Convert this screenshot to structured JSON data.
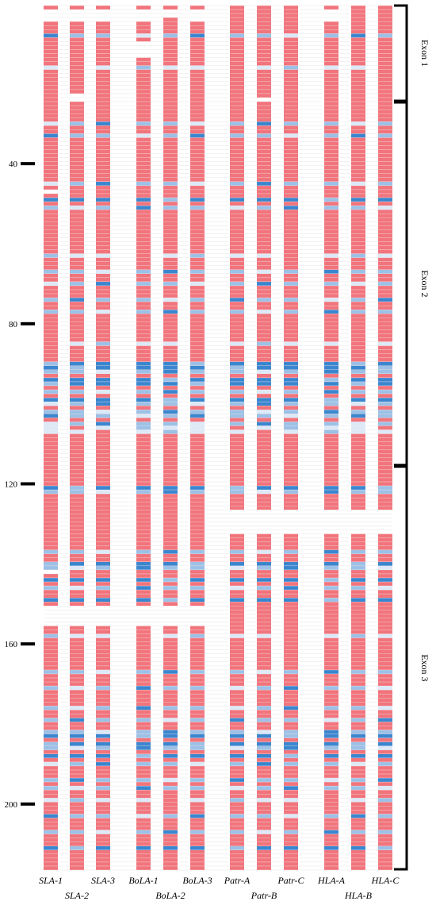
{
  "chart_data": {
    "type": "heatmap",
    "title": "",
    "ylabel": "",
    "row_range": [
      1,
      216
    ],
    "y_ticks": [
      40,
      80,
      120,
      160,
      200
    ],
    "colors": {
      "conserved": "#f2747c",
      "variable_light": "#dde9f7",
      "variable_mid": "#9dc0e6",
      "variable_strong": "#3c86cf",
      "gap": "#ffffff",
      "grid": "#e6e6e6",
      "bracket": "#000000"
    },
    "columns": [
      {
        "name": "SLA-1",
        "label_row": 1
      },
      {
        "name": "SLA-2",
        "label_row": 2
      },
      {
        "name": "SLA-3",
        "label_row": 1
      },
      {
        "name": "BoLA-1",
        "label_row": 1
      },
      {
        "name": "BoLA-2",
        "label_row": 2
      },
      {
        "name": "BoLA-3",
        "label_row": 1
      },
      {
        "name": "Patr-A",
        "label_row": 1
      },
      {
        "name": "Patr-B",
        "label_row": 2
      },
      {
        "name": "Patr-C",
        "label_row": 1
      },
      {
        "name": "HLA-A",
        "label_row": 1
      },
      {
        "name": "HLA-B",
        "label_row": 2
      },
      {
        "name": "HLA-C",
        "label_row": 1
      }
    ],
    "exons": [
      {
        "label": "Exon 1",
        "start": 1,
        "end": 24
      },
      {
        "label": "Exon 2",
        "start": 25,
        "end": 115
      },
      {
        "label": "Exon 3",
        "start": 116,
        "end": 216
      }
    ],
    "gap_rows": {
      "SLA-1": [
        2,
        3,
        4,
        47,
        142,
        151,
        152,
        153,
        154,
        155
      ],
      "SLA-2": [
        2,
        3,
        4,
        23,
        24,
        151,
        152,
        153,
        154,
        155
      ],
      "SLA-3": [
        2,
        3,
        4,
        151,
        152,
        153,
        154,
        155
      ],
      "BoLA-1": [
        2,
        3,
        4,
        10,
        11,
        12,
        13,
        151,
        152,
        153,
        154,
        155
      ],
      "BoLA-2": [
        2,
        3,
        151,
        152,
        153,
        154,
        155
      ],
      "BoLA-3": [
        2,
        3,
        4,
        151,
        152,
        153,
        154,
        155
      ],
      "Patr-A": [
        127,
        128,
        129,
        130,
        131,
        132
      ],
      "Patr-B": [
        24,
        127,
        128,
        129,
        130,
        131,
        132
      ],
      "Patr-C": [
        127,
        128,
        129,
        130,
        131,
        132
      ],
      "HLA-A": [
        2,
        3,
        4,
        127,
        128,
        129,
        130,
        131,
        132
      ],
      "HLA-B": [
        127,
        128,
        129,
        130,
        131,
        132
      ],
      "HLA-C": [
        127,
        128,
        129,
        130,
        131,
        132
      ]
    },
    "variable_rows": [
      {
        "row": 8,
        "level": 2
      },
      {
        "row": 16,
        "level": 1
      },
      {
        "row": 30,
        "level": 2
      },
      {
        "row": 33,
        "level": 2
      },
      {
        "row": 45,
        "level": 2
      },
      {
        "row": 49,
        "level": 3
      },
      {
        "row": 51,
        "level": 2
      },
      {
        "row": 63,
        "level": 1
      },
      {
        "row": 67,
        "level": 2
      },
      {
        "row": 70,
        "level": 2
      },
      {
        "row": 74,
        "level": 2
      },
      {
        "row": 77,
        "level": 2
      },
      {
        "row": 85,
        "level": 1
      },
      {
        "row": 90,
        "level": 3
      },
      {
        "row": 91,
        "level": 3
      },
      {
        "row": 92,
        "level": 2
      },
      {
        "row": 94,
        "level": 3
      },
      {
        "row": 95,
        "level": 3
      },
      {
        "row": 97,
        "level": 2
      },
      {
        "row": 99,
        "level": 3
      },
      {
        "row": 100,
        "level": 2
      },
      {
        "row": 102,
        "level": 2
      },
      {
        "row": 103,
        "level": 2
      },
      {
        "row": 105,
        "level": 2
      },
      {
        "row": 106,
        "level": 1
      },
      {
        "row": 107,
        "level": 1
      },
      {
        "row": 121,
        "level": 3
      },
      {
        "row": 122,
        "level": 2
      },
      {
        "row": 137,
        "level": 2
      },
      {
        "row": 140,
        "level": 3
      },
      {
        "row": 141,
        "level": 2
      },
      {
        "row": 144,
        "level": 3
      },
      {
        "row": 146,
        "level": 2
      },
      {
        "row": 149,
        "level": 3
      },
      {
        "row": 158,
        "level": 1
      },
      {
        "row": 167,
        "level": 2
      },
      {
        "row": 171,
        "level": 2
      },
      {
        "row": 176,
        "level": 2
      },
      {
        "row": 179,
        "level": 2
      },
      {
        "row": 182,
        "level": 2
      },
      {
        "row": 183,
        "level": 3
      },
      {
        "row": 185,
        "level": 3
      },
      {
        "row": 186,
        "level": 2
      },
      {
        "row": 188,
        "level": 3
      },
      {
        "row": 190,
        "level": 2
      },
      {
        "row": 194,
        "level": 2
      },
      {
        "row": 196,
        "level": 2
      },
      {
        "row": 199,
        "level": 1
      },
      {
        "row": 203,
        "level": 2
      },
      {
        "row": 207,
        "level": 2
      },
      {
        "row": 211,
        "level": 3
      }
    ]
  }
}
